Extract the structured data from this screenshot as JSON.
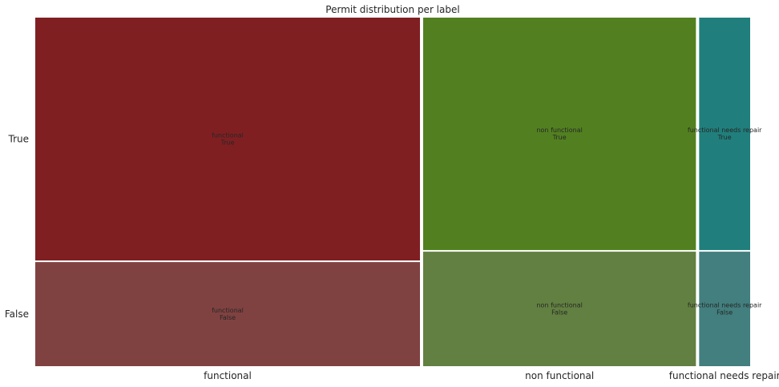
{
  "chart_data": {
    "type": "mosaic",
    "title": "Permit distribution per label",
    "x_categories": [
      "functional",
      "non functional",
      "functional needs repair"
    ],
    "y_categories": [
      "True",
      "False"
    ],
    "cells": [
      {
        "x": "functional",
        "y": "True",
        "x_share": 0.543,
        "y_share_within_x": 0.7,
        "color": "#801f22",
        "label_line1": "functional",
        "label_line2": "True"
      },
      {
        "x": "functional",
        "y": "False",
        "x_share": 0.543,
        "y_share_within_x": 0.3,
        "color": "#804241",
        "label_line1": "functional",
        "label_line2": "False"
      },
      {
        "x": "non functional",
        "y": "True",
        "x_share": 0.385,
        "y_share_within_x": 0.67,
        "color": "#528020",
        "label_line1": "non functional",
        "label_line2": "True"
      },
      {
        "x": "non functional",
        "y": "False",
        "x_share": 0.385,
        "y_share_within_x": 0.33,
        "color": "#628041",
        "label_line1": "non functional",
        "label_line2": "False"
      },
      {
        "x": "functional needs repair",
        "y": "True",
        "x_share": 0.072,
        "y_share_within_x": 0.67,
        "color": "#207f7c",
        "label_line1": "functional needs repair",
        "label_line2": "True"
      },
      {
        "x": "functional needs repair",
        "y": "False",
        "x_share": 0.072,
        "y_share_within_x": 0.33,
        "color": "#427f7e",
        "label_line1": "functional needs repair",
        "label_line2": "False"
      }
    ],
    "xlabel": "",
    "ylabel": "",
    "grid": false,
    "legend": "none"
  }
}
